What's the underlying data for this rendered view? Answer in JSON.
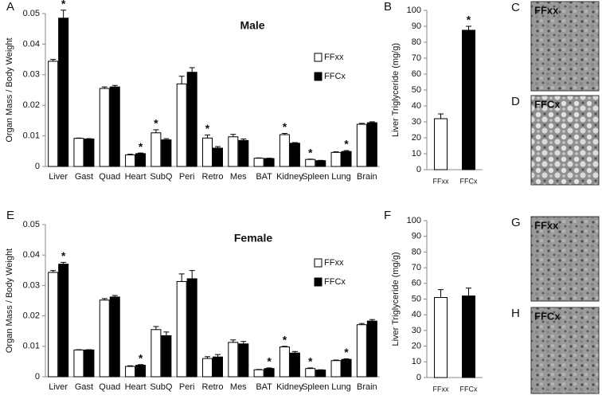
{
  "chart_data": [
    {
      "type": "bar",
      "panel": "A",
      "title": "Male",
      "ylabel": "Organ Mass / Body Weight",
      "categories": [
        "Liver",
        "Gast",
        "Quad",
        "Heart",
        "SubQ",
        "Peri",
        "Retro",
        "Mes",
        "BAT",
        "Kidney",
        "Spleen",
        "Lung",
        "Brain"
      ],
      "series": [
        {
          "name": "FFxx",
          "color": "#ffffff",
          "values": [
            0.0344,
            0.0092,
            0.0255,
            0.0038,
            0.011,
            0.027,
            0.0093,
            0.0097,
            0.0027,
            0.0104,
            0.0023,
            0.0046,
            0.0138
          ],
          "errors": [
            0.0006,
            0.0001,
            0.0005,
            0.0002,
            0.001,
            0.0025,
            0.001,
            0.0008,
            0.0001,
            0.0004,
            0.0001,
            0.0002,
            0.0003
          ]
        },
        {
          "name": "FFCx",
          "color": "#000000",
          "values": [
            0.0485,
            0.009,
            0.026,
            0.0042,
            0.0087,
            0.0308,
            0.006,
            0.0085,
            0.0026,
            0.0076,
            0.0019,
            0.0049,
            0.0143
          ],
          "errors": [
            0.0026,
            0.0001,
            0.0005,
            0.0002,
            0.0004,
            0.0015,
            0.0005,
            0.0005,
            0.0001,
            0.0002,
            0.0001,
            0.0003,
            0.0003
          ]
        }
      ],
      "significance": [
        "*",
        null,
        null,
        "*",
        "*",
        null,
        "*",
        null,
        null,
        "*",
        "*",
        "*",
        null
      ],
      "ylim": [
        0,
        0.05
      ],
      "yticks": [
        0,
        0.01,
        0.02,
        0.03,
        0.04,
        0.05
      ]
    },
    {
      "type": "bar",
      "panel": "B",
      "ylabel": "Liver Triglyceride (mg/g)",
      "categories": [
        "FFxx",
        "FFCx"
      ],
      "values": [
        32,
        87.5
      ],
      "errors": [
        3,
        2.5
      ],
      "colors": [
        "#ffffff",
        "#000000"
      ],
      "significance": [
        null,
        "*"
      ],
      "ylim": [
        0,
        100
      ],
      "yticks": [
        0,
        10,
        20,
        30,
        40,
        50,
        60,
        70,
        80,
        90,
        100
      ]
    },
    {
      "type": "bar",
      "panel": "E",
      "title": "Female",
      "ylabel": "Organ Mass / Body Weight",
      "categories": [
        "Liver",
        "Gast",
        "Quad",
        "Heart",
        "SubQ",
        "Peri",
        "Retro",
        "Mes",
        "BAT",
        "Kidney",
        "Spleen",
        "Lung",
        "Brain"
      ],
      "series": [
        {
          "name": "FFxx",
          "color": "#ffffff",
          "values": [
            0.0343,
            0.0088,
            0.0252,
            0.0034,
            0.0155,
            0.0313,
            0.006,
            0.0113,
            0.0023,
            0.0098,
            0.0027,
            0.0053,
            0.0171
          ],
          "errors": [
            0.0006,
            0.0001,
            0.0005,
            0.0002,
            0.001,
            0.0025,
            0.0006,
            0.0008,
            0.0001,
            0.0002,
            0.0002,
            0.0002,
            0.0004
          ]
        },
        {
          "name": "FFCx",
          "color": "#000000",
          "values": [
            0.037,
            0.0088,
            0.0262,
            0.0038,
            0.0135,
            0.0322,
            0.0065,
            0.0108,
            0.0027,
            0.0078,
            0.0022,
            0.0057,
            0.0183
          ],
          "errors": [
            0.0006,
            0.0001,
            0.0005,
            0.0002,
            0.0012,
            0.0027,
            0.0008,
            0.0008,
            0.0002,
            0.0005,
            0.0001,
            0.0002,
            0.0005
          ]
        }
      ],
      "significance": [
        "*",
        null,
        null,
        "*",
        null,
        null,
        null,
        null,
        "*",
        "*",
        "*",
        "*",
        null
      ],
      "ylim": [
        0,
        0.05
      ],
      "yticks": [
        0,
        0.01,
        0.02,
        0.03,
        0.04,
        0.05
      ]
    },
    {
      "type": "bar",
      "panel": "F",
      "ylabel": "Liver Triglyceride (mg/g)",
      "categories": [
        "FFxx",
        "FFCx"
      ],
      "values": [
        51,
        52
      ],
      "errors": [
        5,
        5
      ],
      "colors": [
        "#ffffff",
        "#000000"
      ],
      "significance": [
        null,
        null
      ],
      "ylim": [
        0,
        100
      ],
      "yticks": [
        0,
        10,
        20,
        30,
        40,
        50,
        60,
        70,
        80,
        90,
        100
      ]
    }
  ],
  "images": [
    {
      "panel": "C",
      "label": "FFxx"
    },
    {
      "panel": "D",
      "label": "FFCx"
    },
    {
      "panel": "G",
      "label": "FFxx"
    },
    {
      "panel": "H",
      "label": "FFCx"
    }
  ]
}
